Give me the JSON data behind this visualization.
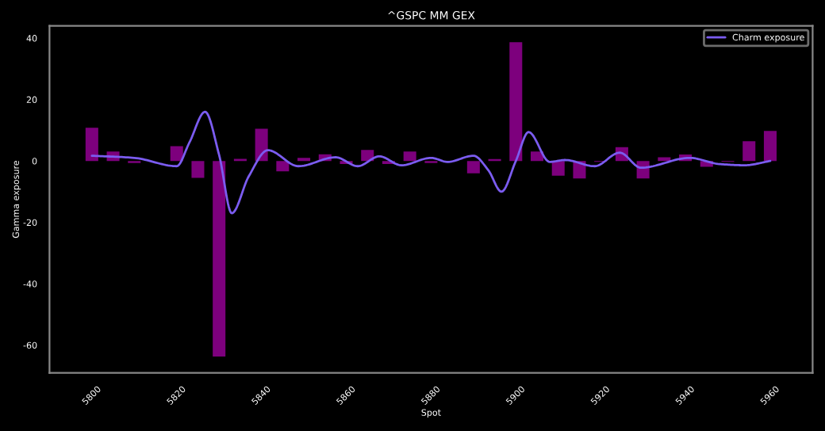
{
  "chart_data": {
    "type": "bar",
    "title": "^GSPC MM GEX",
    "xlabel": "Spot",
    "ylabel": "Gamma exposure",
    "xlim": [
      5790,
      5970
    ],
    "xticks": [
      5800,
      5820,
      5840,
      5860,
      5880,
      5900,
      5920,
      5940,
      5960
    ],
    "ylim": [
      -69,
      44
    ],
    "yticks": [
      -60,
      -40,
      -20,
      0,
      20,
      40
    ],
    "grid": false,
    "legend": "top right",
    "series": [
      {
        "color": "#8b008b",
        "x": [
          5800,
          5805,
          5810,
          5815,
          5820,
          5825,
          5830,
          5835,
          5840,
          5845,
          5850,
          5855,
          5860,
          5865,
          5870,
          5875,
          5880,
          5885,
          5890,
          5895,
          5900,
          5905,
          5910,
          5915,
          5920,
          5925,
          5930,
          5935,
          5940,
          5945,
          5950,
          5955,
          5960
        ],
        "values": [
          10.8,
          3.1,
          -0.7,
          null,
          4.8,
          -5.5,
          -63.7,
          0.7,
          10.5,
          -3.4,
          1,
          2.2,
          -1,
          3.6,
          -1,
          3.1,
          -0.7,
          null,
          -4,
          0.6,
          38.7,
          3.1,
          -4.8,
          -5.7,
          -0.3,
          4.5,
          -5.7,
          1.2,
          2.1,
          -1.9,
          -0.3,
          6.4,
          9.8
        ]
      },
      {
        "type": "line",
        "name": "Charm exposure",
        "color": "#7b5cf0",
        "x": [
          5800,
          5810,
          5820,
          5823,
          5826.7,
          5830,
          5833,
          5837,
          5841.5,
          5848.7,
          5857.5,
          5862.7,
          5867.8,
          5873,
          5880,
          5883.9,
          5890,
          5893.5,
          5896.6,
          5900,
          5903,
          5908,
          5911.6,
          5918.6,
          5924.5,
          5929.5,
          5941,
          5948,
          5954,
          5960
        ],
        "values": [
          1.7,
          1,
          -1.7,
          6,
          16,
          2,
          -17,
          -5,
          3.5,
          -1.7,
          1.2,
          -1.7,
          1.5,
          -1.4,
          1,
          -0.3,
          1.7,
          -3,
          -10,
          0,
          9.4,
          -0.3,
          0.3,
          -1.7,
          2.7,
          -2.2,
          1,
          -1,
          -1.4,
          0
        ]
      }
    ]
  }
}
